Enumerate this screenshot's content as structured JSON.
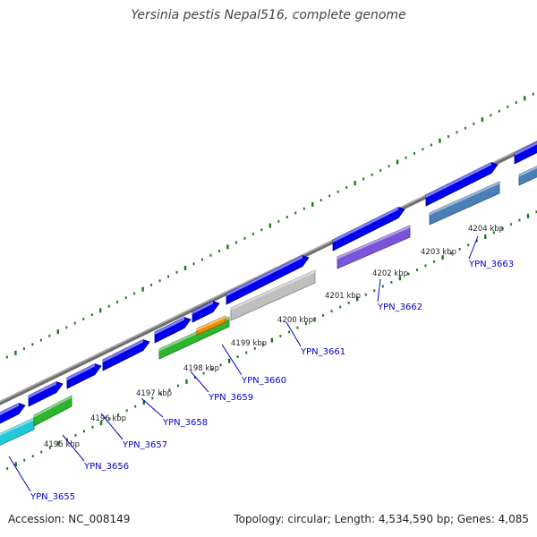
{
  "title": "Yersinia pestis Nepal516, complete genome",
  "accession": "Accession: NC_008149",
  "topology": "Topology: circular; Length: 4,534,590 bp; Genes: 4,085",
  "colors": {
    "backbone": "#808080",
    "dots": "#1a7a1a",
    "forward_gene": "#0000ee",
    "gene_label": "#0000cc",
    "kbp_label": "#222222"
  },
  "tick_labels": [
    "4195 kbp",
    "4196 kbp",
    "4197 kbp",
    "4198 kbp",
    "4199 kbp",
    "4200 kbp",
    "4201 kbp",
    "4202 kbp",
    "4203 kbp",
    "4204 kbp"
  ],
  "genes": [
    {
      "name": "YPN_3655",
      "color": "#22c8d8"
    },
    {
      "name": "YPN_3656",
      "color": "#2db52d"
    },
    {
      "name": "YPN_3657",
      "color": "#0000ee"
    },
    {
      "name": "YPN_3658",
      "color": "#0000ee"
    },
    {
      "name": "YPN_3659",
      "color": "#2db52d"
    },
    {
      "name": "YPN_3660",
      "color": "#f08c00"
    },
    {
      "name": "YPN_3661",
      "color": "#bfbfbf"
    },
    {
      "name": "YPN_3662",
      "color": "#7b55d8"
    },
    {
      "name": "YPN_3663",
      "color": "#4a7fb8"
    }
  ]
}
